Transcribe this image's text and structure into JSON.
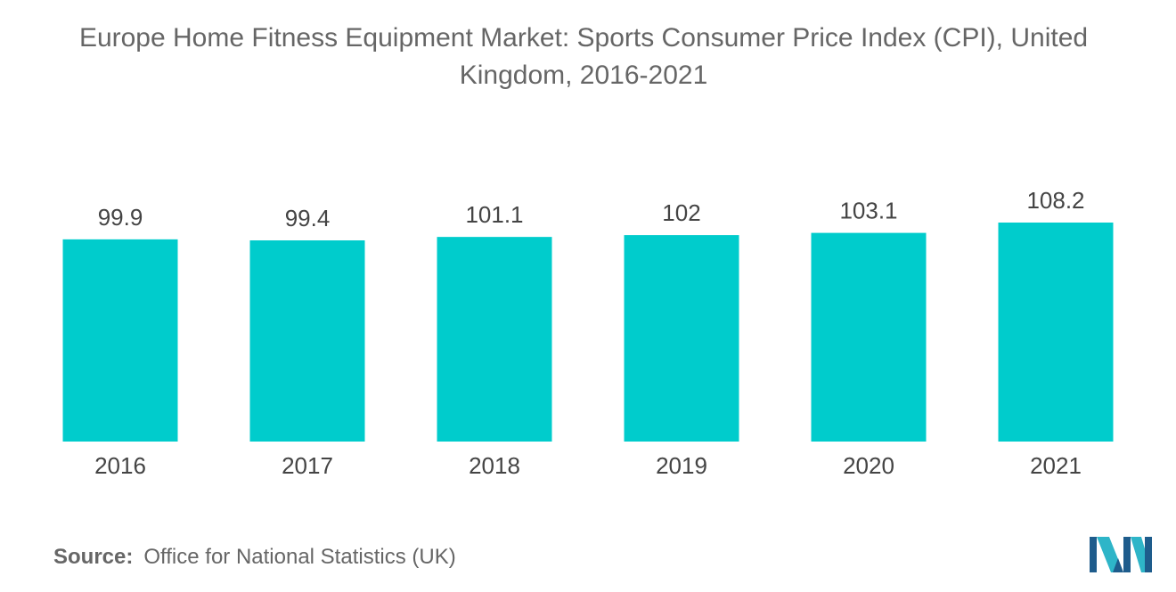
{
  "chart_data": {
    "type": "bar",
    "title": "Europe Home Fitness Equipment Market: Sports Consumer Price Index (CPI), United Kingdom, 2016-2021",
    "categories": [
      "2016",
      "2017",
      "2018",
      "2019",
      "2020",
      "2021"
    ],
    "values": [
      99.9,
      99.4,
      101.1,
      102,
      103.1,
      108.2
    ],
    "value_labels": [
      "99.9",
      "99.4",
      "101.1",
      "102",
      "103.1",
      "108.2"
    ],
    "xlabel": "",
    "ylabel": "",
    "ylim": [
      0,
      108.2
    ],
    "grid": false,
    "legend": "none",
    "bar_color": "#00CCCC"
  },
  "source": {
    "label": "Source:",
    "text": "Office for National Statistics (UK)"
  },
  "logo": {
    "icon": "mordor-intelligence-logo-icon",
    "colors": [
      "#1E5C8C",
      "#2EB5C8"
    ]
  }
}
